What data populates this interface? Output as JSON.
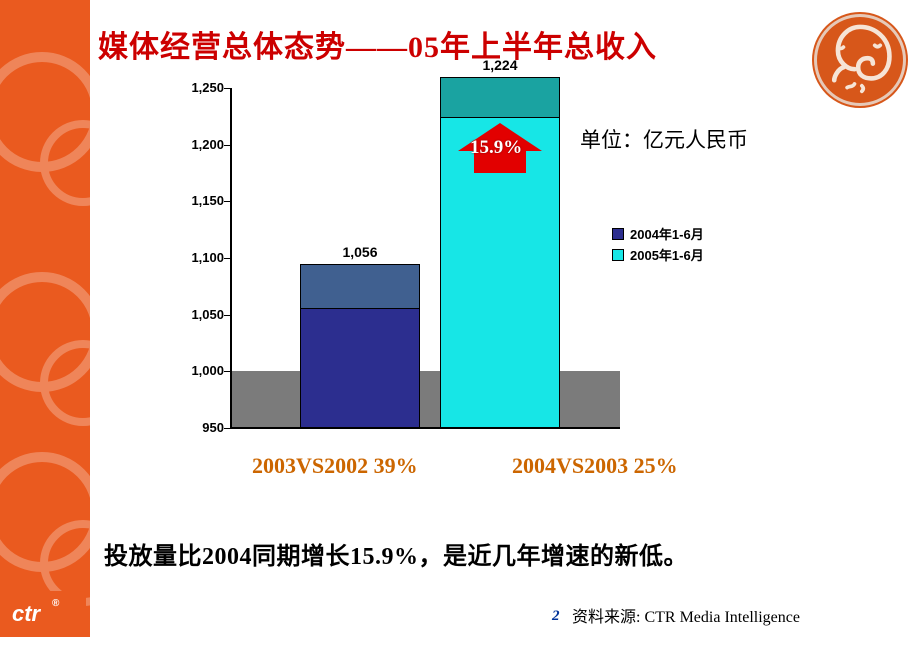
{
  "title": "媒体经营总体态势——05年上半年总收入",
  "unit_label": "单位：亿元人民币",
  "legend": {
    "items": [
      {
        "label": "2004年1-6月",
        "color": "#2c2e8f"
      },
      {
        "label": "2005年1-6月",
        "color": "#17e6e6"
      }
    ]
  },
  "chart": {
    "type": "bar",
    "background_color": "#ffffff",
    "ylim": [
      950,
      1250
    ],
    "ytick_step": 50,
    "ytick_labels": [
      "950",
      "1,000",
      "1,050",
      "1,100",
      "1,150",
      "1,200",
      "1,250"
    ],
    "label_font": "Arial",
    "label_fontsize": 13,
    "bars": [
      {
        "value": 1056,
        "label": "1,056",
        "main_color": "#2c2e8f",
        "cap_color": "#406090",
        "cap_value": 1095
      },
      {
        "value": 1224,
        "label": "1,224",
        "main_color": "#17e6e6",
        "cap_color": "#1aa3a1",
        "cap_value": 1260
      }
    ],
    "baseline_fill_color": "#7b7b7b",
    "axis_color": "#000000",
    "bar_border_color": "#000000",
    "growth_arrow": {
      "text": "15.9%",
      "color": "#e20000",
      "text_color": "#ffffff"
    }
  },
  "compare_lines": [
    {
      "text": "2003VS2002   39%"
    },
    {
      "text": "2004VS2003   25%"
    }
  ],
  "compare_color": "#cc6600",
  "conclusion": "投放量比2004同期增长15.9%，是近几年增速的新低。",
  "page_number": "2",
  "source_label": "资料来源: CTR Media Intelligence",
  "brand": "ctr"
}
